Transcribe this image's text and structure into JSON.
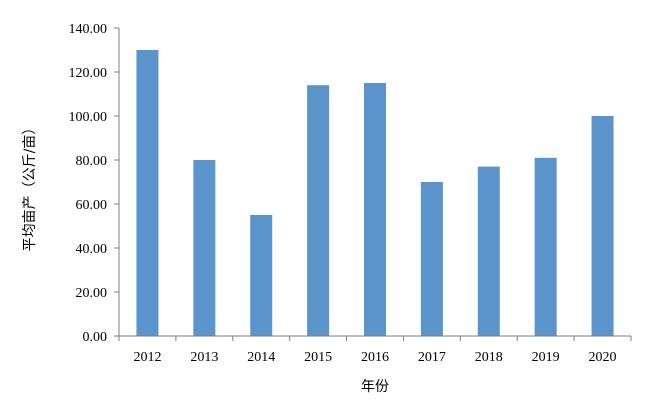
{
  "chart_data": {
    "type": "bar",
    "categories": [
      "2012",
      "2013",
      "2014",
      "2015",
      "2016",
      "2017",
      "2018",
      "2019",
      "2020"
    ],
    "values": [
      130.0,
      80.0,
      55.0,
      114.0,
      115.0,
      70.0,
      77.0,
      81.0,
      100.0
    ],
    "xlabel": "年份",
    "ylabel": "平均亩产（公斤/亩）",
    "ylim": [
      0,
      140
    ],
    "yticks": [
      "0.00",
      "20.00",
      "40.00",
      "60.00",
      "80.00",
      "100.00",
      "120.00",
      "140.00"
    ],
    "grid": false,
    "legend": "none",
    "colors": {
      "bar": "#5b93cb",
      "axis": "#7f7f7f"
    }
  }
}
